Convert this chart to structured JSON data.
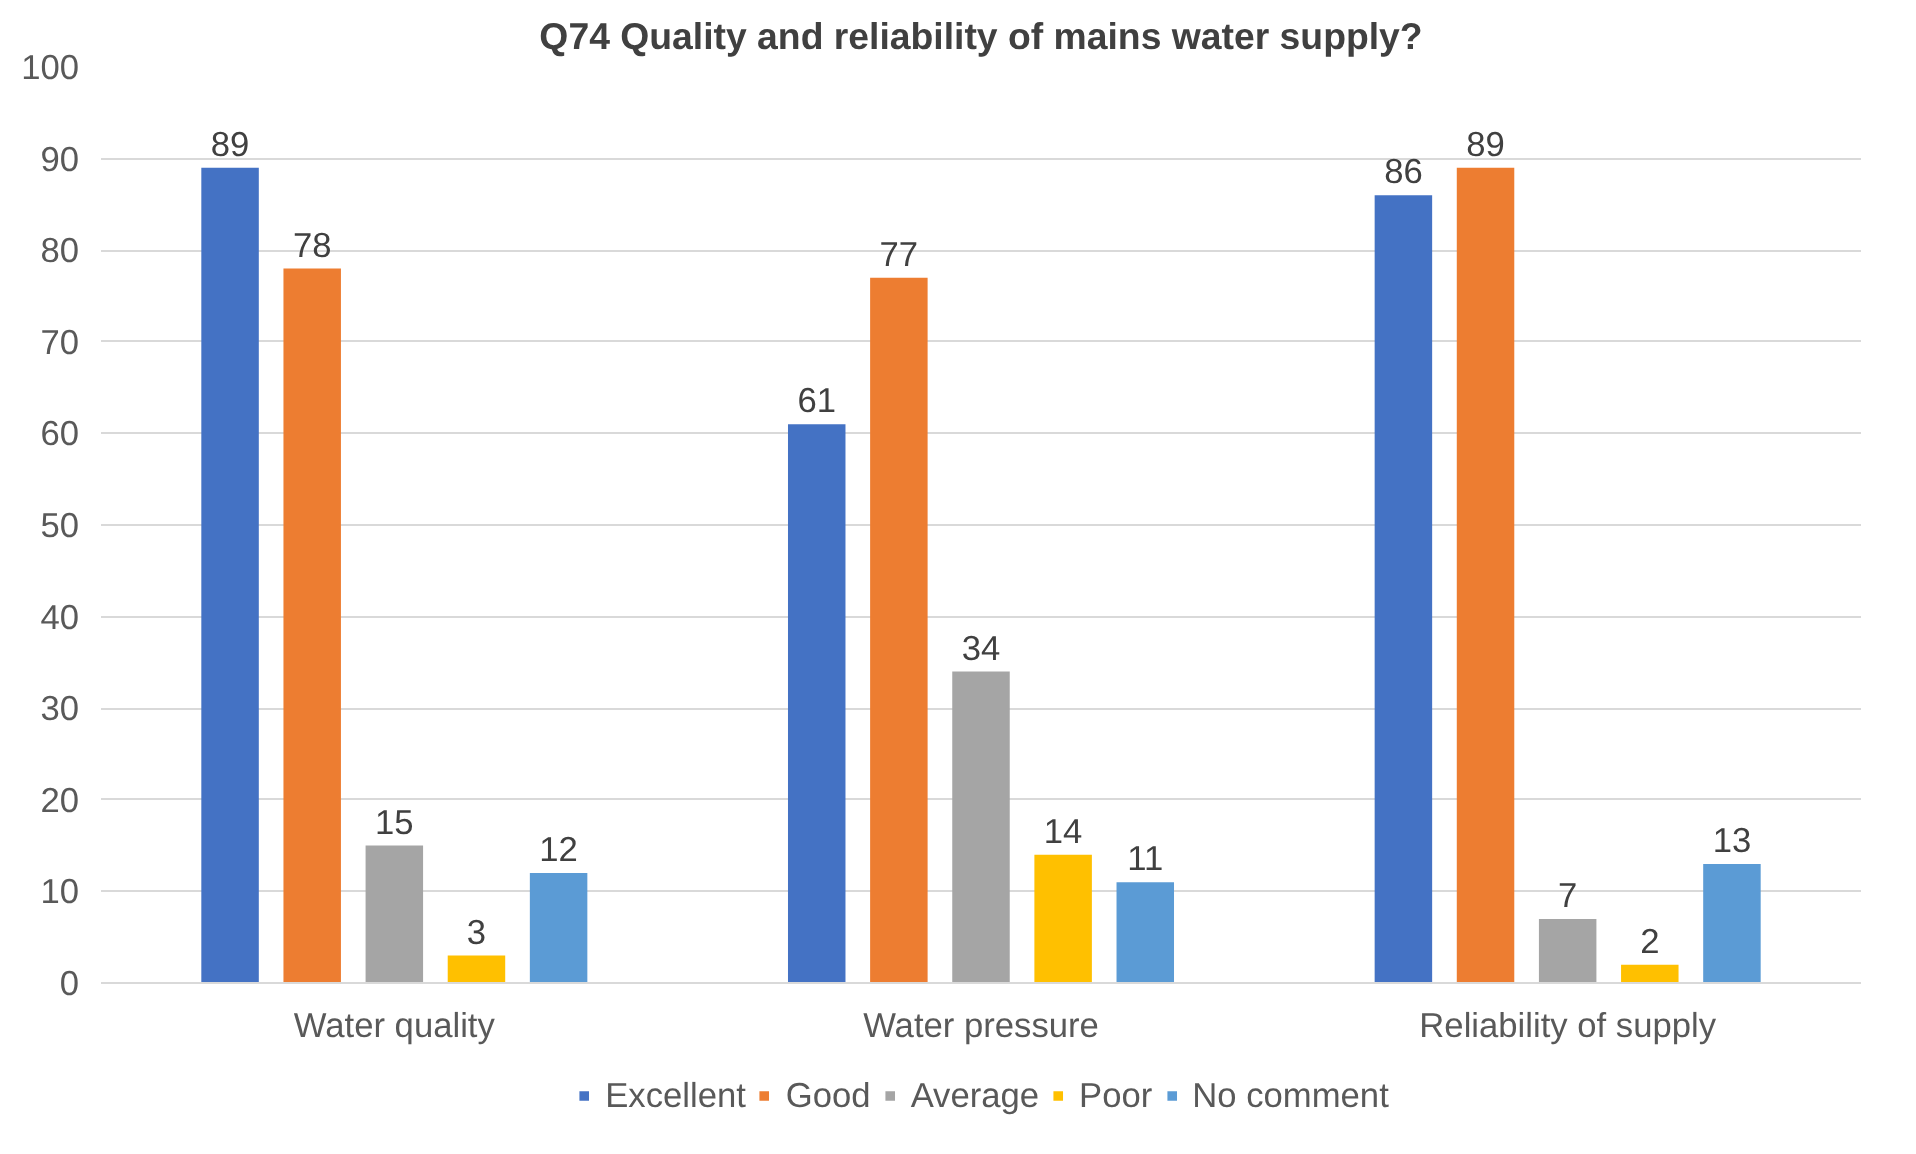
{
  "chart_data": {
    "type": "bar",
    "title": "Q74 Quality and reliability of mains water supply?",
    "categories": [
      "Water quality",
      "Water pressure",
      "Reliability of supply"
    ],
    "series": [
      {
        "name": "Excellent",
        "color": "#4472c4",
        "values": [
          89,
          61,
          86
        ]
      },
      {
        "name": "Good",
        "color": "#ed7d31",
        "values": [
          78,
          77,
          89
        ]
      },
      {
        "name": "Average",
        "color": "#a5a5a5",
        "values": [
          15,
          34,
          7
        ]
      },
      {
        "name": "Poor",
        "color": "#ffc000",
        "values": [
          3,
          14,
          2
        ]
      },
      {
        "name": "No comment",
        "color": "#5b9bd5",
        "values": [
          12,
          11,
          13
        ]
      }
    ],
    "ylim": [
      0,
      100
    ],
    "yticks": [
      0,
      10,
      20,
      30,
      40,
      50,
      60,
      70,
      80,
      90,
      100
    ],
    "grid": "y",
    "legend": "bottom",
    "data_labels": true
  }
}
